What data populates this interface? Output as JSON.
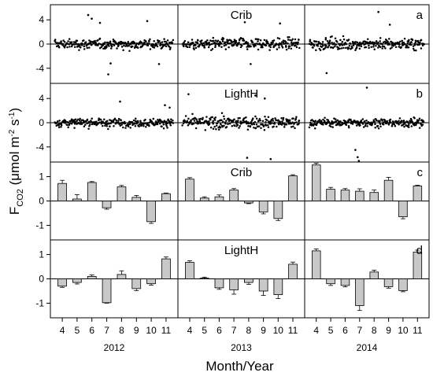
{
  "chart_data": {
    "type": "bar",
    "ylabel_main": "F",
    "ylabel_sub": "CO2",
    "ylabel_units_pre": " (μmol m",
    "ylabel_units_exp1": "-2",
    "ylabel_units_mid": " s",
    "ylabel_units_exp2": "-1",
    "ylabel_units_post": ")",
    "xlabel": "Month/Year",
    "years": [
      "2012",
      "2013",
      "2014"
    ],
    "months": [
      "4",
      "5",
      "6",
      "7",
      "8",
      "9",
      "10",
      "11"
    ],
    "panels": [
      {
        "letter": "a",
        "label": "Crib",
        "kind": "scatter",
        "ylim": [
          -6.5,
          6.5
        ],
        "yticks": [
          -4,
          0,
          4
        ],
        "points_per_year": 260,
        "spread": [
          1.0,
          1.2,
          1.2
        ],
        "outliers": [
          {
            "year": 0,
            "t": 0.28,
            "y": 4.8
          },
          {
            "year": 0,
            "t": 0.31,
            "y": 4.2
          },
          {
            "year": 0,
            "t": 0.38,
            "y": 3.5
          },
          {
            "year": 0,
            "t": 0.45,
            "y": -5.0
          },
          {
            "year": 0,
            "t": 0.47,
            "y": -3.2
          },
          {
            "year": 0,
            "t": 0.88,
            "y": -3.3
          },
          {
            "year": 0,
            "t": 0.78,
            "y": 3.8
          },
          {
            "year": 1,
            "t": 0.53,
            "y": 3.6
          },
          {
            "year": 1,
            "t": 0.58,
            "y": -3.3
          },
          {
            "year": 1,
            "t": 0.83,
            "y": 3.4
          },
          {
            "year": 2,
            "t": 0.6,
            "y": 5.3
          },
          {
            "year": 2,
            "t": 0.15,
            "y": -4.8
          },
          {
            "year": 2,
            "t": 0.7,
            "y": 3.2
          }
        ]
      },
      {
        "letter": "b",
        "label": "LightH",
        "kind": "scatter",
        "ylim": [
          -6.5,
          6.5
        ],
        "yticks": [
          -4,
          0,
          4
        ],
        "points_per_year": 260,
        "spread": [
          0.9,
          1.3,
          0.9
        ],
        "outliers": [
          {
            "year": 0,
            "t": 0.55,
            "y": 3.5
          },
          {
            "year": 0,
            "t": 0.93,
            "y": 2.9
          },
          {
            "year": 0,
            "t": 0.97,
            "y": 2.5
          },
          {
            "year": 1,
            "t": 0.05,
            "y": 4.7
          },
          {
            "year": 1,
            "t": 0.62,
            "y": 4.5
          },
          {
            "year": 1,
            "t": 0.7,
            "y": 4.0
          },
          {
            "year": 1,
            "t": 0.55,
            "y": -5.8
          },
          {
            "year": 1,
            "t": 0.75,
            "y": -6.0
          },
          {
            "year": 2,
            "t": 0.5,
            "y": 5.8
          },
          {
            "year": 2,
            "t": 0.4,
            "y": -4.5
          },
          {
            "year": 2,
            "t": 0.42,
            "y": -5.7
          },
          {
            "year": 2,
            "t": 0.43,
            "y": -6.3
          }
        ]
      },
      {
        "letter": "c",
        "label": "Crib",
        "kind": "bar",
        "ylim": [
          -1.6,
          1.6
        ],
        "yticks": [
          -1,
          0,
          1
        ],
        "values": [
          [
            0.72,
            0.08,
            0.76,
            -0.28,
            0.58,
            0.15,
            -0.85,
            0.3
          ],
          [
            0.9,
            0.12,
            0.17,
            0.45,
            -0.08,
            -0.45,
            -0.72,
            1.03
          ],
          [
            1.48,
            0.48,
            0.45,
            0.4,
            0.35,
            0.85,
            -0.65,
            0.62
          ]
        ],
        "errors": [
          [
            0.13,
            0.18,
            0.04,
            0.06,
            0.06,
            0.08,
            0.07,
            0.03
          ],
          [
            0.06,
            0.05,
            0.08,
            0.06,
            0.03,
            0.08,
            0.08,
            0.05
          ],
          [
            0.07,
            0.08,
            0.06,
            0.1,
            0.1,
            0.12,
            0.08,
            0.03
          ]
        ]
      },
      {
        "letter": "d",
        "label": "LightH",
        "kind": "bar",
        "ylim": [
          -1.6,
          1.6
        ],
        "yticks": [
          -1,
          0,
          1
        ],
        "values": [
          [
            -0.3,
            -0.15,
            0.1,
            -0.98,
            0.18,
            -0.4,
            -0.2,
            0.82
          ],
          [
            0.68,
            0.03,
            -0.37,
            -0.45,
            -0.15,
            -0.5,
            -0.65,
            0.6
          ],
          [
            1.15,
            -0.2,
            -0.27,
            -1.1,
            0.28,
            -0.32,
            -0.48,
            1.1
          ]
        ],
        "errors": [
          [
            0.05,
            0.06,
            0.06,
            0.02,
            0.15,
            0.08,
            0.06,
            0.08
          ],
          [
            0.06,
            0.04,
            0.06,
            0.18,
            0.08,
            0.18,
            0.16,
            0.09
          ],
          [
            0.08,
            0.07,
            0.06,
            0.2,
            0.08,
            0.06,
            0.05,
            0.08
          ]
        ]
      }
    ]
  }
}
